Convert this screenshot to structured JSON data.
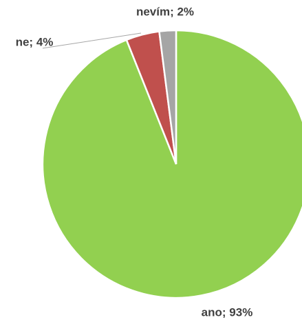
{
  "chart_data": {
    "type": "pie",
    "categories": [
      "ano",
      "ne",
      "nevím"
    ],
    "values": [
      93,
      4,
      2
    ],
    "value_labels": [
      "ano; 93%",
      "ne; 4%",
      "nevím; 2%"
    ],
    "colors": [
      "#92d050",
      "#c0504d",
      "#a5a5a5"
    ]
  }
}
